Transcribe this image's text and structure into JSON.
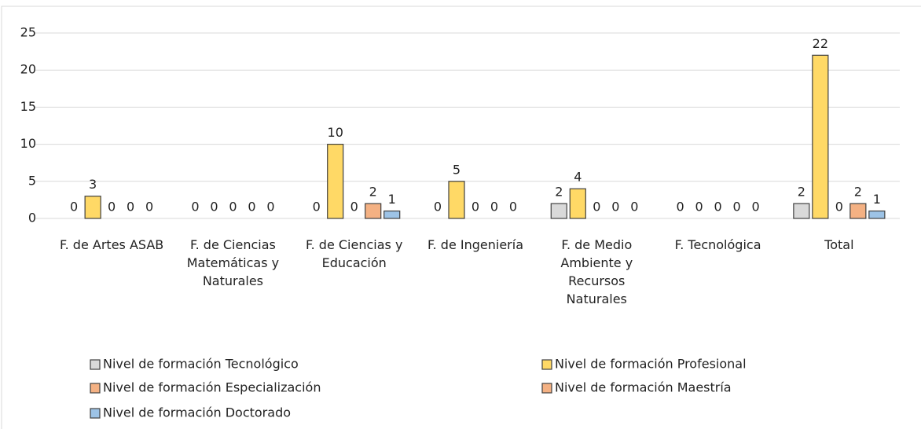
{
  "chart_data": {
    "type": "bar",
    "categories": [
      "F. de Artes ASAB",
      "F. de Ciencias Matemáticas y Naturales",
      "F. de Ciencias y Educación",
      "F. de Ingeniería",
      "F. de Medio Ambiente y Recursos Naturales",
      "F. Tecnológica",
      "Total"
    ],
    "series": [
      {
        "name": "Nivel de formación Tecnológico",
        "color": "#d9d9d9",
        "values": [
          0,
          0,
          0,
          0,
          2,
          0,
          2
        ]
      },
      {
        "name": "Nivel de formación Profesional",
        "color": "#ffd966",
        "values": [
          3,
          0,
          10,
          5,
          4,
          0,
          22
        ]
      },
      {
        "name": "Nivel de formación Especialización",
        "color": "#f4b183",
        "values": [
          0,
          0,
          0,
          0,
          0,
          0,
          0
        ]
      },
      {
        "name": "Nivel de formación Maestría",
        "color": "#f4b183",
        "values": [
          0,
          0,
          2,
          0,
          0,
          0,
          2
        ]
      },
      {
        "name": "Nivel de formación Doctorado",
        "color": "#9dc3e6",
        "values": [
          0,
          0,
          1,
          0,
          0,
          0,
          1
        ]
      }
    ],
    "ylim": [
      0,
      25
    ],
    "yticks": [
      0,
      5,
      10,
      15,
      20,
      25
    ],
    "grid": true,
    "legend": "bottom"
  }
}
